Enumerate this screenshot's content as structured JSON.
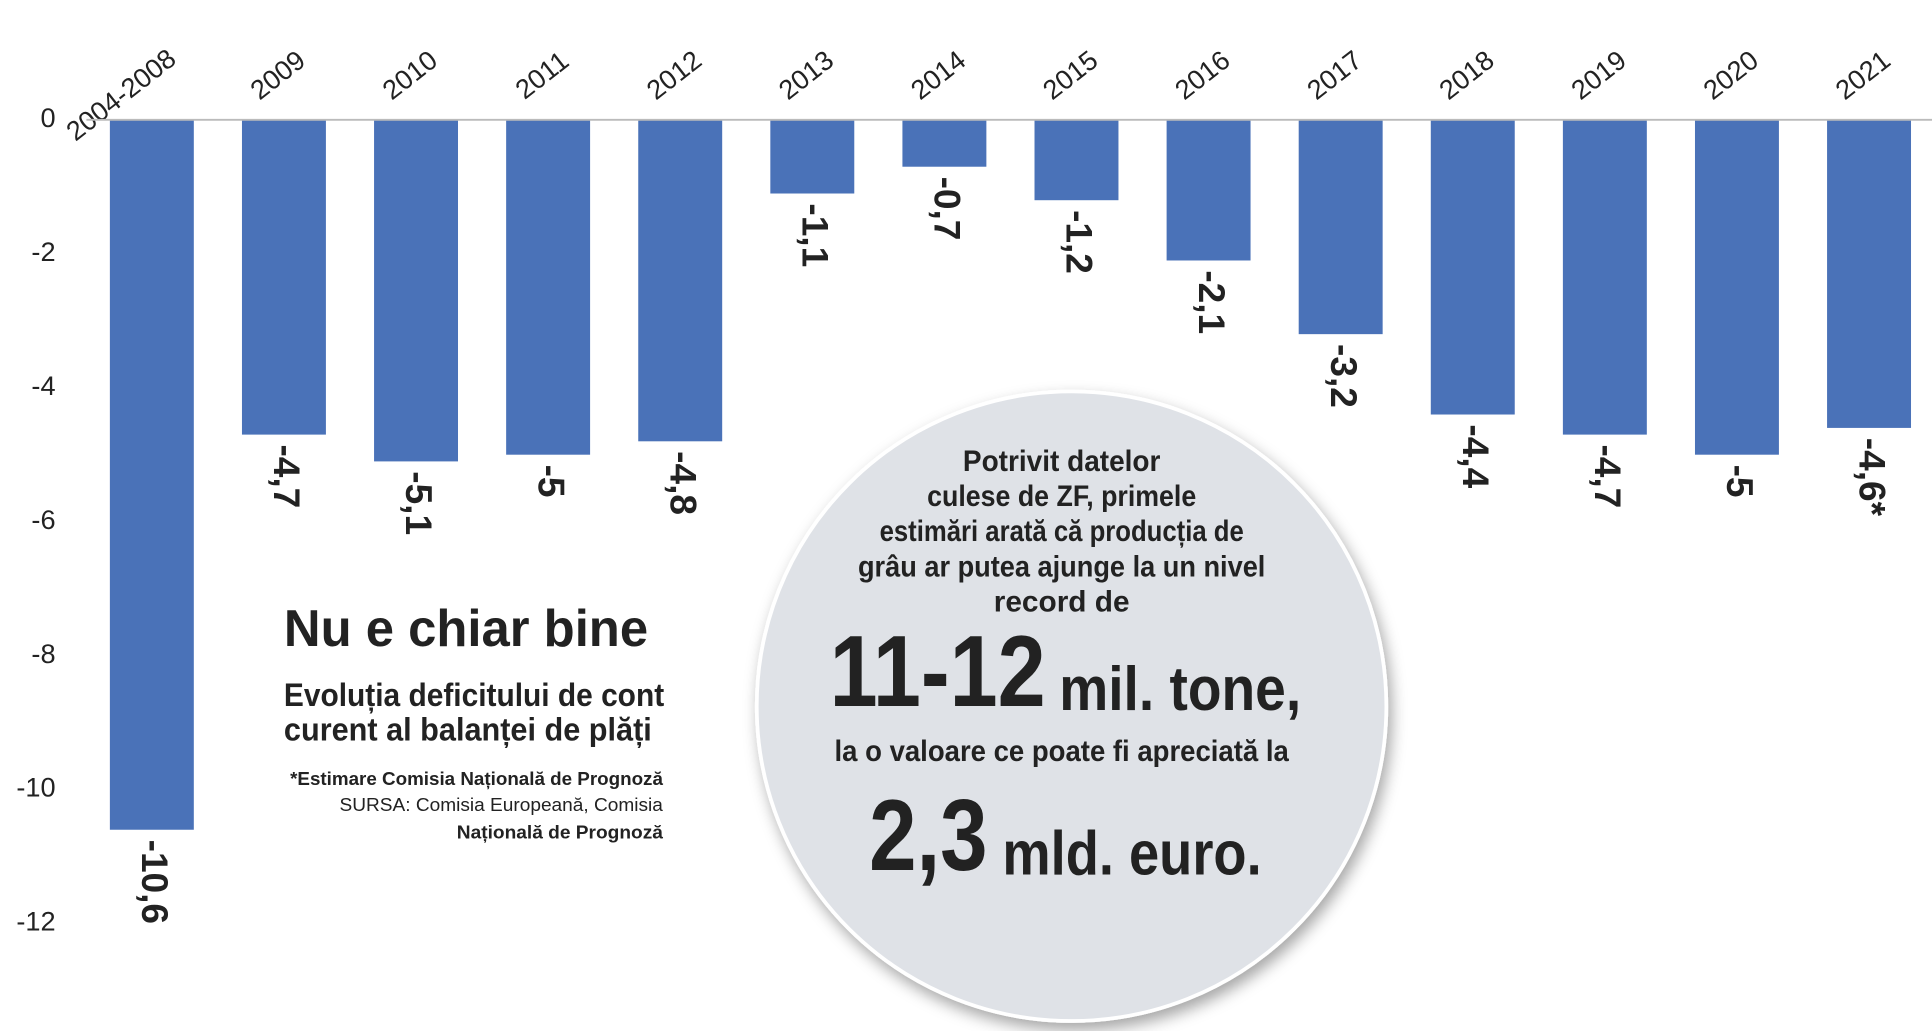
{
  "chart_data": {
    "type": "bar",
    "title": "Nu e chiar bine",
    "subtitle": [
      "Evoluția deficitului de cont",
      "curent al balanței de plăți"
    ],
    "note": "*Estimare Comisia Națională de Prognoză",
    "source": [
      "SURSA: Comisia Europeană, Comisia",
      "Națională de Prognoză"
    ],
    "categories": [
      "2004-2008",
      "2009",
      "2010",
      "2011",
      "2012",
      "2013",
      "2014",
      "2015",
      "2016",
      "2017",
      "2018",
      "2019",
      "2020",
      "2021"
    ],
    "values": [
      -10.6,
      -4.7,
      -5.1,
      -5,
      -4.8,
      -1.1,
      -0.7,
      -1.2,
      -2.1,
      -3.2,
      -4.4,
      -4.7,
      -5,
      -4.6
    ],
    "value_labels": [
      "-10,6",
      "-4,7",
      "-5,1",
      "-5",
      "-4,8",
      "-1,1",
      "-0,7",
      "-1,2",
      "-2,1",
      "-3,2",
      "-4,4",
      "-4,7",
      "-5",
      "-4,6*"
    ],
    "color": "#4a72b8",
    "ylim": [
      -12,
      0
    ],
    "yticks": [
      0,
      -2,
      -4,
      -6,
      -8,
      -10,
      -12
    ],
    "callout": {
      "lines": [
        "Potrivit datelor",
        "culese de ZF, primele",
        "estimări arată că producția de",
        "grâu ar putea ajunge la un nivel",
        "record de"
      ],
      "figure1": "11-12",
      "unit1": "mil. tone,",
      "middle": "la o valoare ce poate fi apreciată la",
      "figure2": "2,3",
      "unit2": "mld. euro."
    }
  }
}
